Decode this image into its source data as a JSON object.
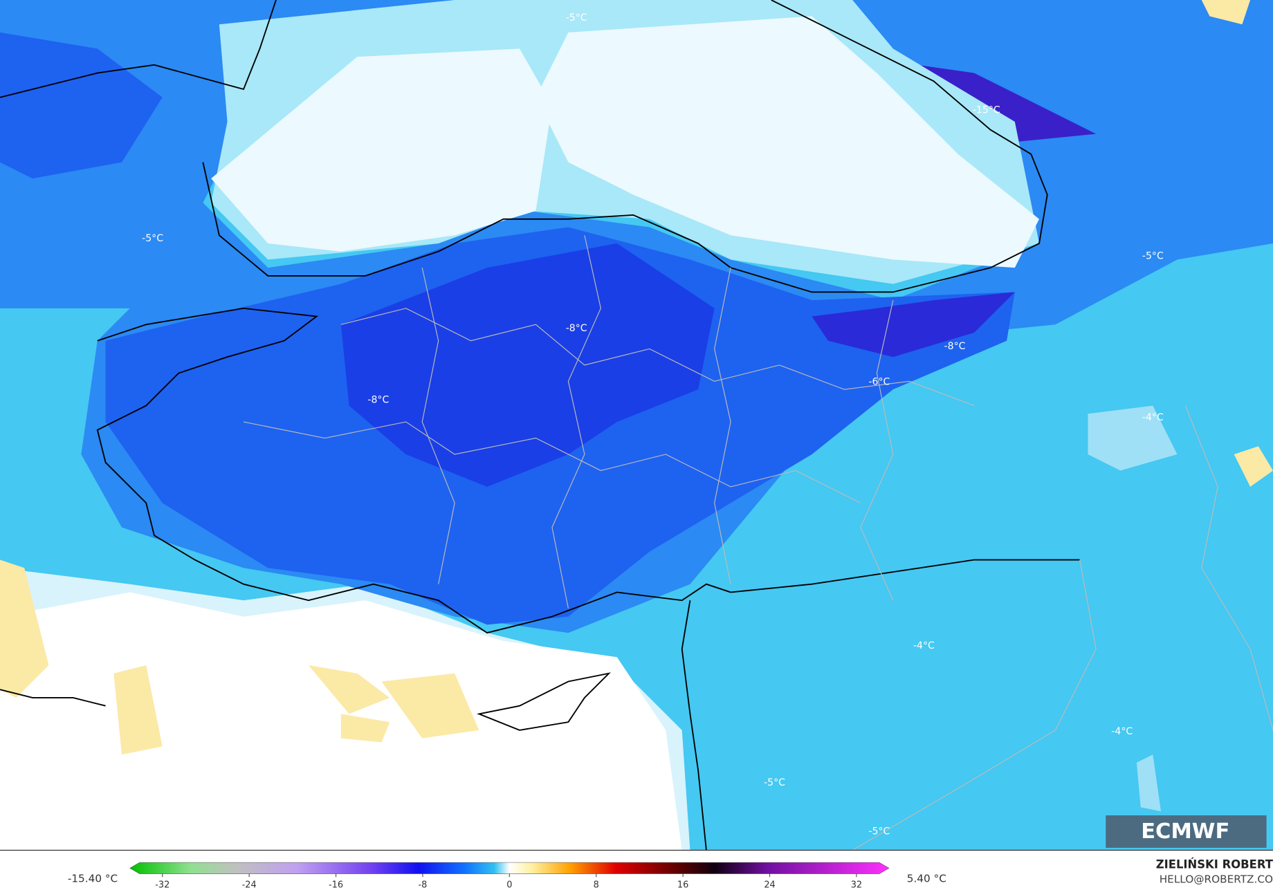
{
  "map_labels": [
    "-5°C",
    "-15°C",
    "-5°C",
    "-5°C",
    "-8°C",
    "-8°C",
    "-8°C",
    "-6°C",
    "-4°C",
    "-4°C",
    "-4°C",
    "-5°C",
    "-5°C"
  ],
  "colorbar": {
    "min_label": "-15.40 °C",
    "max_label": "5.40 °C",
    "range": [
      -35,
      35
    ],
    "ticks": [
      -32,
      -24,
      -16,
      -8,
      0,
      8,
      16,
      24,
      32
    ]
  },
  "logo": "ECMWF",
  "author": {
    "name": "ZIELIŃSKI ROBERT",
    "email": "HELLO@ROBERTZ.CO"
  }
}
